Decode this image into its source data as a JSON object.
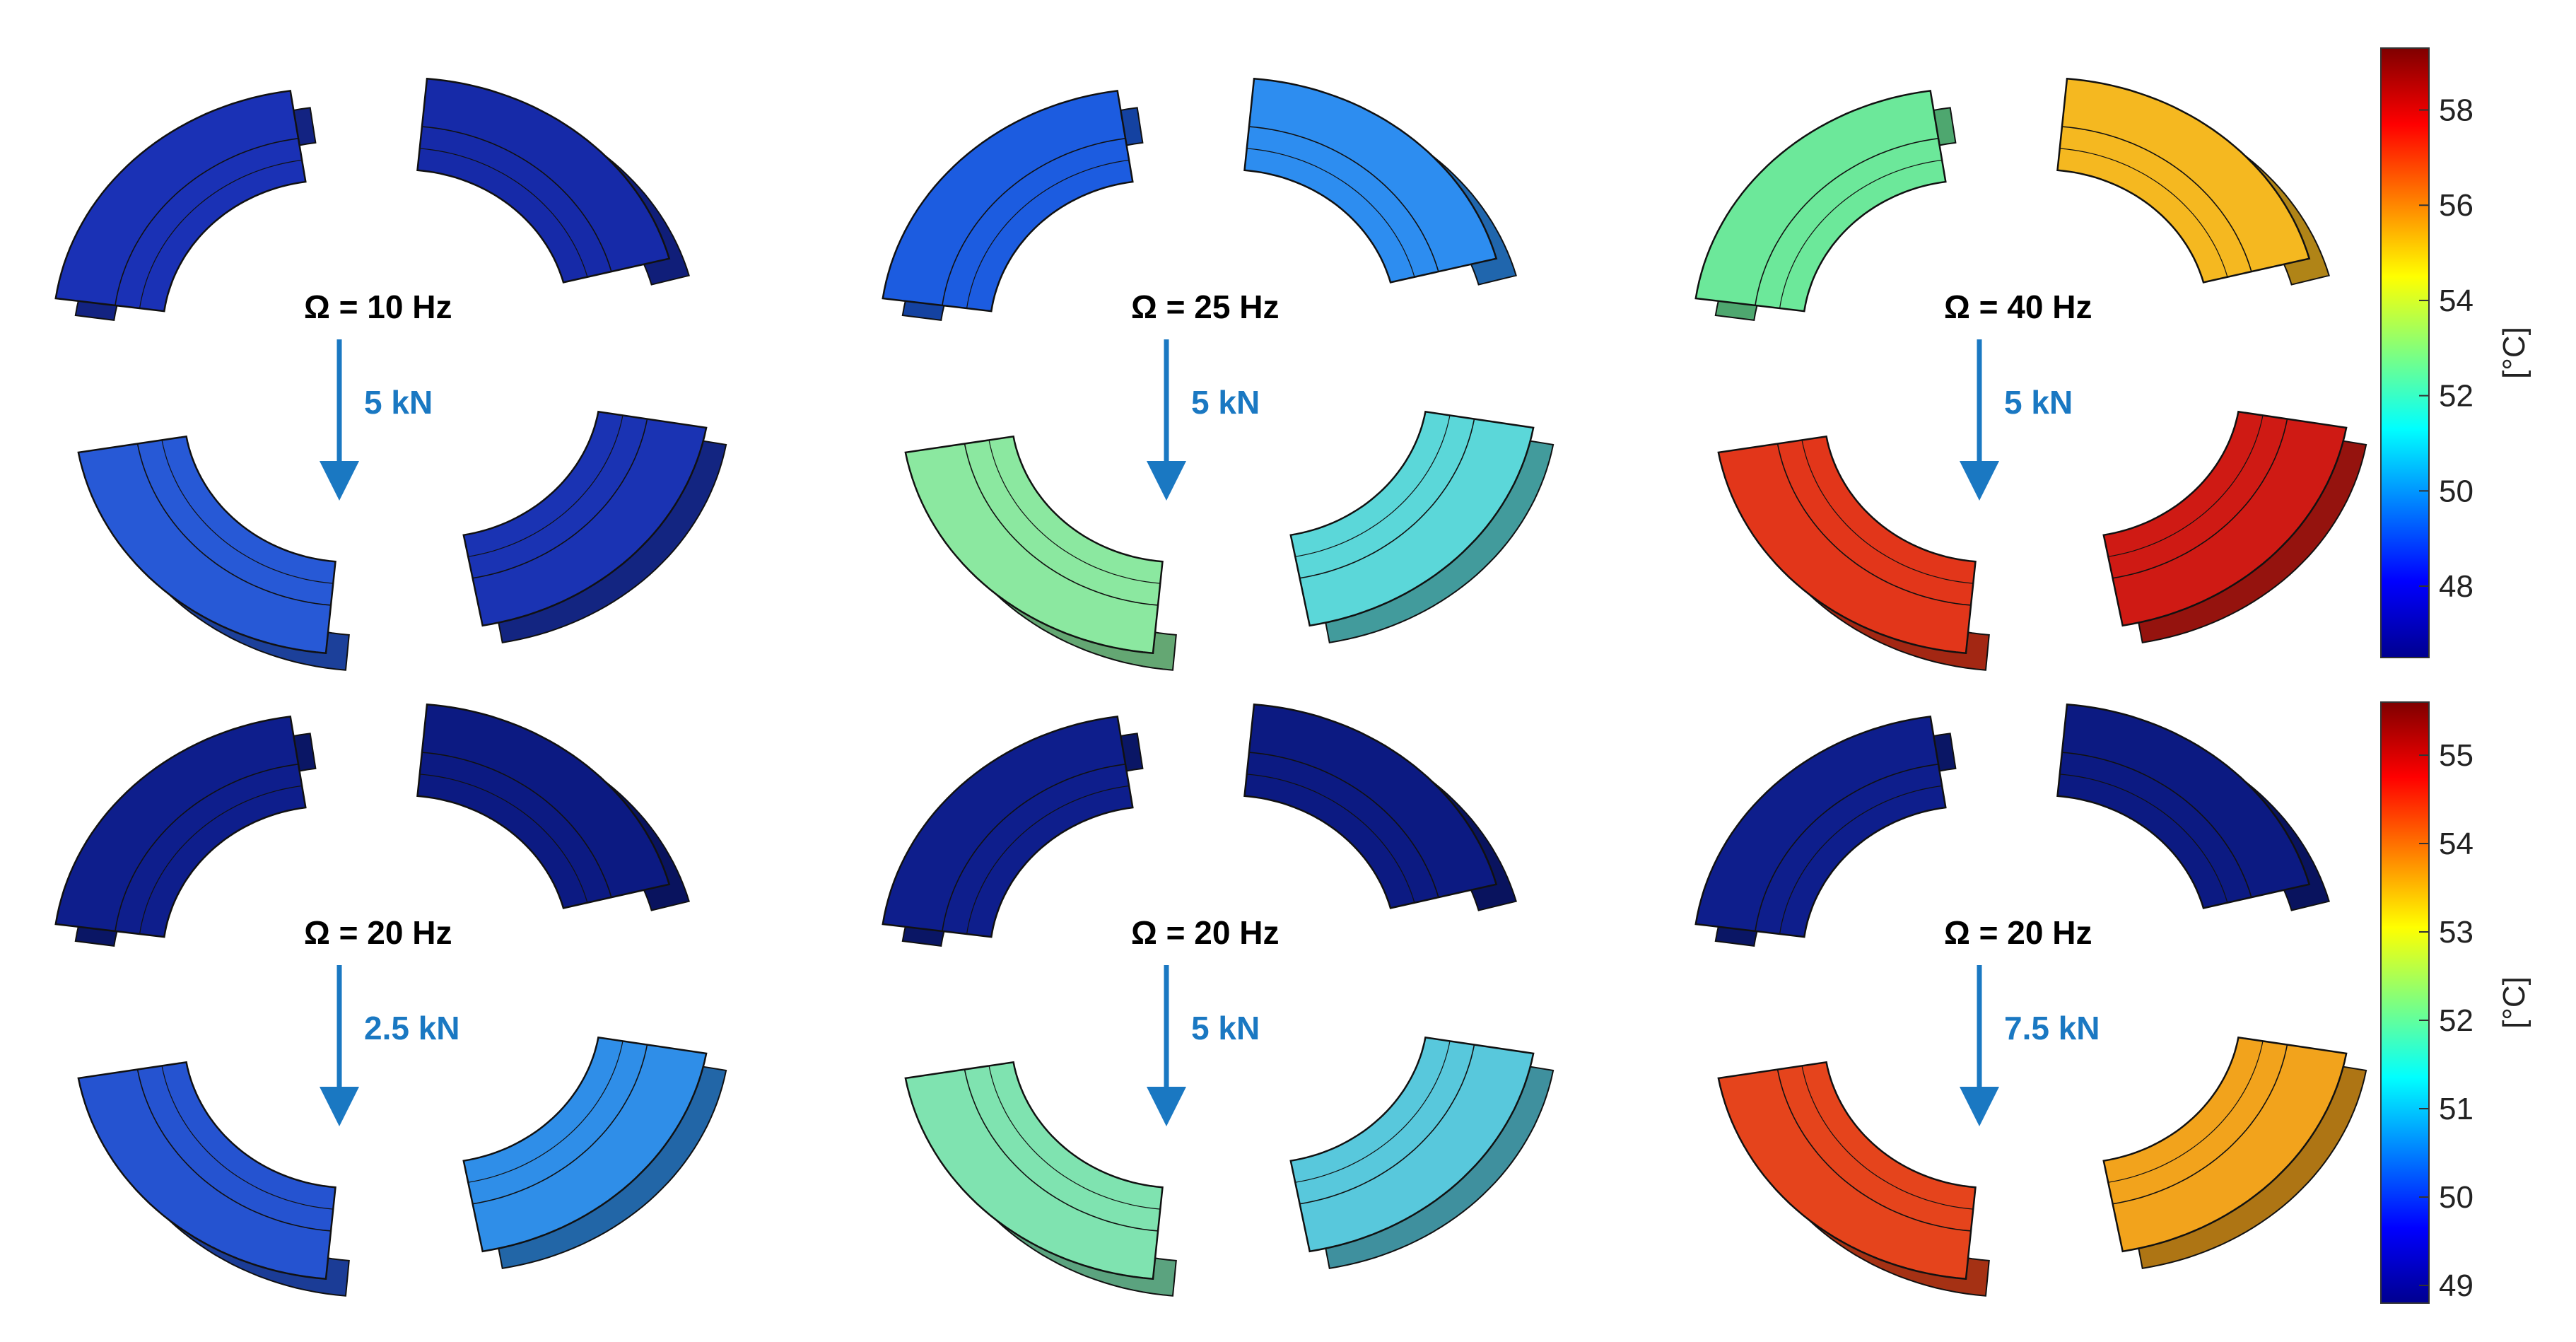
{
  "panels": [
    {
      "speed": "Ω = 10 Hz",
      "load": "5 kN",
      "colors": [
        "#1a31b5",
        "#162aa8",
        "#1a33b3",
        "#2759d6"
      ]
    },
    {
      "speed": "Ω = 25 Hz",
      "load": "5 kN",
      "colors": [
        "#1c5ce0",
        "#2d8df0",
        "#5bd7d9",
        "#8be8a0"
      ]
    },
    {
      "speed": "Ω = 40 Hz",
      "load": "5 kN",
      "colors": [
        "#6ce89a",
        "#f5b820",
        "#cf1a14",
        "#e2361a"
      ]
    },
    {
      "speed": "Ω = 20 Hz",
      "load": "2.5 kN",
      "colors": [
        "#0e1e8c",
        "#0c1a82",
        "#2f8ee8",
        "#2553d0"
      ]
    },
    {
      "speed": "Ω = 20 Hz",
      "load": "5 kN",
      "colors": [
        "#0e1e8c",
        "#0c1a82",
        "#58c8dc",
        "#7fe3b0"
      ]
    },
    {
      "speed": "Ω = 20 Hz",
      "load": "7.5 kN",
      "colors": [
        "#0e1e8c",
        "#0c1a82",
        "#f2a31c",
        "#e5441c"
      ]
    }
  ],
  "colorbars": [
    {
      "unit": "[°C]",
      "ticks": [
        "58",
        "56",
        "54",
        "52",
        "50",
        "48"
      ],
      "range": [
        46.5,
        59.3
      ]
    },
    {
      "unit": "[°C]",
      "ticks": [
        "55",
        "54",
        "53",
        "52",
        "51",
        "50",
        "49"
      ],
      "range": [
        48.8,
        55.6
      ]
    }
  ],
  "colormap": [
    "#00008f",
    "#0000ff",
    "#007fff",
    "#00ffff",
    "#7fff7f",
    "#ffff00",
    "#ff7f00",
    "#ff0000",
    "#7f0000"
  ]
}
